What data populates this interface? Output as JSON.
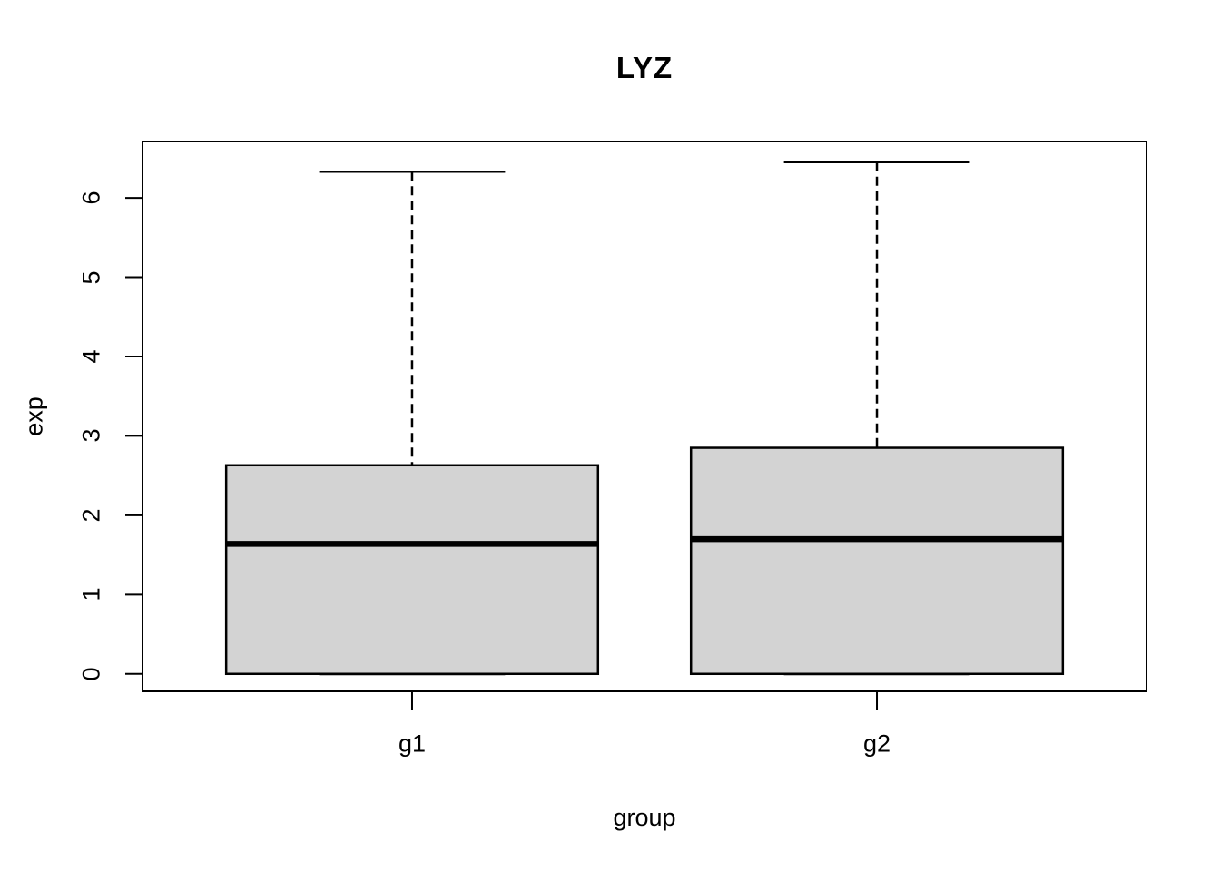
{
  "title": "LYZ",
  "chart_data": {
    "type": "boxplot",
    "title": "LYZ",
    "xlabel": "group",
    "ylabel": "exp",
    "categories": [
      "g1",
      "g2"
    ],
    "yticks": [
      0,
      1,
      2,
      3,
      4,
      5,
      6
    ],
    "ylim": [
      -0.22,
      6.71
    ],
    "grid": false,
    "legend": null,
    "series": [
      {
        "name": "g1",
        "lower_whisker": 0,
        "q1": 0,
        "median": 1.64,
        "q3": 2.63,
        "upper_whisker": 6.33,
        "outliers": []
      },
      {
        "name": "g2",
        "lower_whisker": 0,
        "q1": 0,
        "median": 1.7,
        "q3": 2.85,
        "upper_whisker": 6.45,
        "outliers": []
      }
    ],
    "colors": {
      "box_fill": "#d3d3d3",
      "line": "#000000",
      "background": "#ffffff"
    }
  }
}
